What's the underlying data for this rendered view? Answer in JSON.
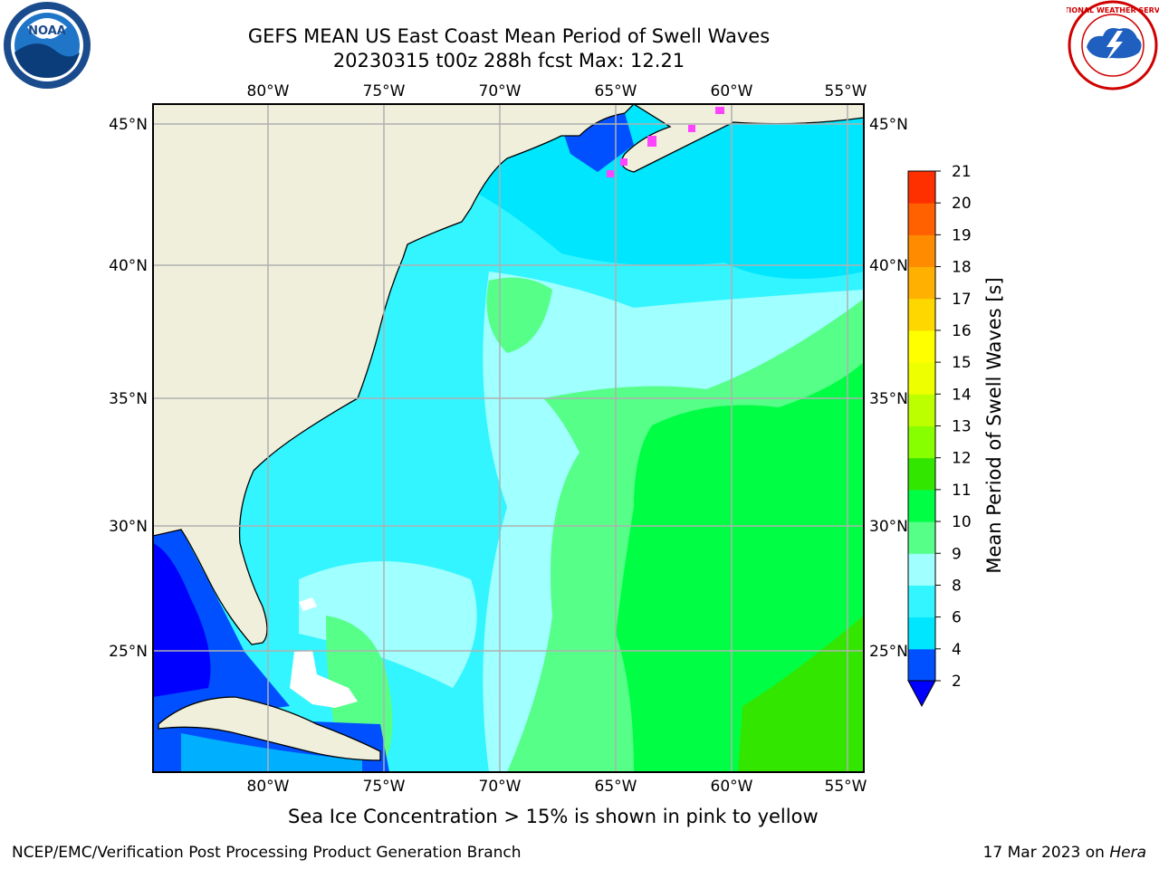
{
  "title": {
    "line1": "GEFS MEAN US East Coast Mean Period of Swell Waves",
    "line2": "20230315 t00z 288h fcst   Max: 12.21"
  },
  "logos": {
    "left": {
      "icon": "noaa-logo",
      "text": "NOAA"
    },
    "right": {
      "icon": "national-weather-service-logo",
      "text": "NATIONAL WEATHER SERVICE"
    }
  },
  "map": {
    "lon_labels": [
      "80°W",
      "75°W",
      "70°W",
      "65°W",
      "60°W",
      "55°W"
    ],
    "lat_labels": [
      "45°N",
      "40°N",
      "35°N",
      "30°N",
      "25°N"
    ],
    "extent": {
      "lon": [
        -85,
        -54
      ],
      "lat": [
        20,
        46
      ]
    },
    "land_color": "#efefdc",
    "grid_color": "#b0b0b0"
  },
  "colorbar": {
    "label": "Mean Period of Swell Waves [s]",
    "ticks": [
      "2",
      "4",
      "6",
      "8",
      "9",
      "10",
      "11",
      "12",
      "13",
      "14",
      "15",
      "16",
      "17",
      "18",
      "19",
      "20",
      "21"
    ],
    "colors": [
      "#0050ff",
      "#00e6ff",
      "#33f5ff",
      "#a0ffff",
      "#55ff88",
      "#00ff44",
      "#33e600",
      "#88ff00",
      "#bbff00",
      "#eeff00",
      "#ffff00",
      "#ffd700",
      "#ffb000",
      "#ff8c00",
      "#ff6000",
      "#ff3000"
    ],
    "under_color": "#0000ff"
  },
  "footnote": "Sea Ice Concentration > 15% is shown in pink to yellow",
  "credit": {
    "left": "NCEP/EMC/Verification Post Processing Product Generation Branch",
    "right_date": "17 Mar 2023 on ",
    "right_machine": "Hera"
  }
}
